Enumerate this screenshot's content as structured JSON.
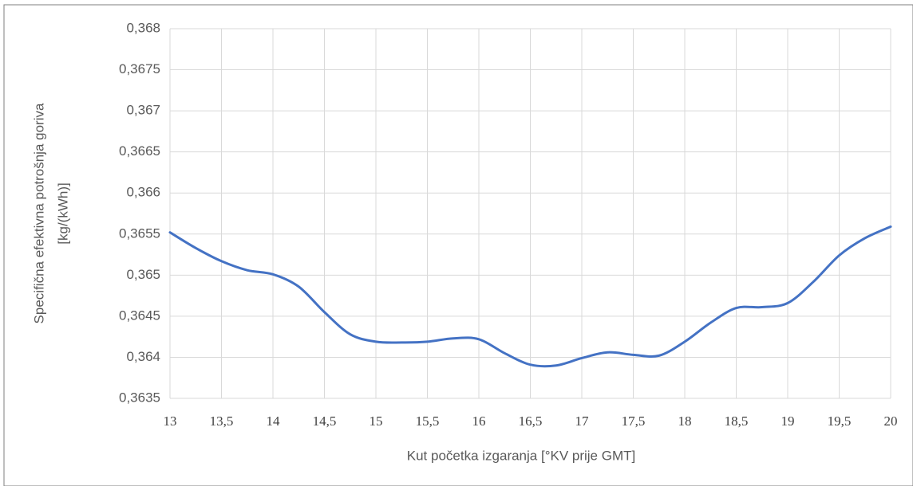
{
  "chart_data": {
    "type": "line",
    "x_label": "Kut početka izgaranja [°KV prije GMT]",
    "y_label": [
      "Specifična efektivna potrošnja goriva",
      "[kg/(kWh)]"
    ],
    "x": [
      13,
      13.25,
      13.5,
      13.75,
      14,
      14.25,
      14.5,
      14.75,
      15,
      15.25,
      15.5,
      15.75,
      16,
      16.25,
      16.5,
      16.75,
      17,
      17.25,
      17.5,
      17.75,
      18,
      18.25,
      18.5,
      18.75,
      19,
      19.25,
      19.5,
      19.75,
      20
    ],
    "values": [
      0.36552,
      0.36533,
      0.36517,
      0.36506,
      0.36501,
      0.36486,
      0.36455,
      0.36428,
      0.36419,
      0.36418,
      0.36419,
      0.36423,
      0.36422,
      0.36405,
      0.36391,
      0.3639,
      0.36399,
      0.36406,
      0.36403,
      0.36402,
      0.36419,
      0.36442,
      0.3646,
      0.36461,
      0.36466,
      0.36492,
      0.36524,
      0.36545,
      0.36559
    ],
    "color": "#4472c4",
    "xlim": [
      13,
      20
    ],
    "xticks": [
      13,
      {
        "value": 13.5,
        "label": "13,5"
      },
      14,
      {
        "value": 14.5,
        "label": "14,5"
      },
      15,
      {
        "value": 15.5,
        "label": "15,5"
      },
      16,
      {
        "value": 16.5,
        "label": "16,5"
      },
      17,
      {
        "value": 17.5,
        "label": "17,5"
      },
      18,
      {
        "value": 18.5,
        "label": "18,5"
      },
      19,
      {
        "value": 19.5,
        "label": "19,5"
      },
      20
    ],
    "ylim": [
      0.3635,
      0.368
    ],
    "yticks": [
      {
        "value": 0.3635,
        "label": "0,3635"
      },
      {
        "value": 0.364,
        "label": "0,364"
      },
      {
        "value": 0.3645,
        "label": "0,3645"
      },
      {
        "value": 0.365,
        "label": "0,365"
      },
      {
        "value": 0.3655,
        "label": "0,3655"
      },
      {
        "value": 0.366,
        "label": "0,366"
      },
      {
        "value": 0.3665,
        "label": "0,3665"
      },
      {
        "value": 0.367,
        "label": "0,367"
      },
      {
        "value": 0.3675,
        "label": "0,3675"
      },
      {
        "value": 0.368,
        "label": "0,368"
      }
    ],
    "grid": true
  }
}
